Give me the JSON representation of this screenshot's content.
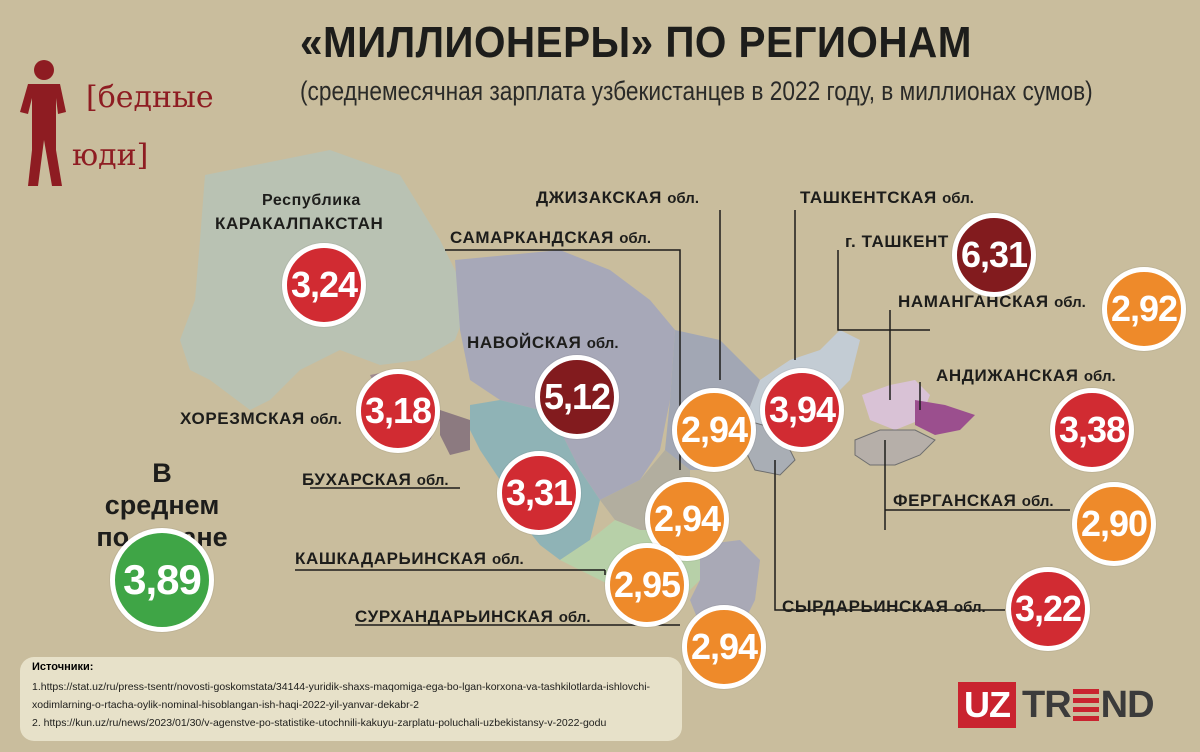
{
  "header": {
    "title": "«МИЛЛИОНЕРЫ» ПО РЕГИОНАМ",
    "subtitle": "(среднемесячная зарплата узбекистанцев в 2022 году, в миллионах сумов)"
  },
  "brand": {
    "word1": "[бедные",
    "word2": "юди]"
  },
  "regions": {
    "karakalpakstan": {
      "label1": "Республика",
      "label2": "КАРАКАЛПАКСТАН",
      "value": "3,24"
    },
    "khorezm": {
      "label": "ХОРЕЗМСКАЯ",
      "suffix": "обл.",
      "value": "3,18"
    },
    "navoi": {
      "label": "НАВОЙСКАЯ",
      "suffix": "обл.",
      "value": "5,12"
    },
    "bukhara": {
      "label": "БУХАРСКАЯ",
      "suffix": "обл.",
      "value": "3,31"
    },
    "samarkand": {
      "label": "САМАРКАНДСКАЯ",
      "suffix": "обл.",
      "value": "2,94"
    },
    "jizzakh": {
      "label": "ДЖИЗАКСКАЯ",
      "suffix": "обл.",
      "value": "2,94"
    },
    "kashkadarya": {
      "label": "КАШКАДАРЬИНСКАЯ",
      "suffix": "обл.",
      "value": "2,95"
    },
    "surkhandarya": {
      "label": "СУРХАНДАРЬИНСКАЯ",
      "suffix": "обл.",
      "value": "2,94"
    },
    "tashkent_region": {
      "label": "ТАШКЕНТСКАЯ",
      "suffix": "обл.",
      "value": "3,94"
    },
    "tashkent_city": {
      "label": "г. ТАШКЕНТ",
      "value": "6,31"
    },
    "namangan": {
      "label": "НАМАНГАНСКАЯ",
      "suffix": "обл.",
      "value": "2,92"
    },
    "andijan": {
      "label": "АНДИЖАНСКАЯ",
      "suffix": "обл.",
      "value": "3,38"
    },
    "fergana": {
      "label": "ФЕРГАНСКАЯ",
      "suffix": "обл.",
      "value": "2,90"
    },
    "syrdarya": {
      "label": "СЫРДАРЬИНСКАЯ",
      "suffix": "обл.",
      "value": "3,22"
    }
  },
  "average": {
    "label1": "В среднем",
    "label2": "по стране",
    "value": "3,89"
  },
  "sources": {
    "title": "Источники:",
    "line1": "1.https://stat.uz/ru/press-tsentr/novosti-goskomstata/34144-yuridik-shaxs-maqomiga-ega-bo-lgan-korxona-va-tashkilotlarda-ishlovchi-",
    "line2": "xodimlarning-o-rtacha-oylik-nominal-hisoblangan-ish-haqi-2022-yil-yanvar-dekabr-2",
    "line3": "2. https://kun.uz/ru/news/2023/01/30/v-agenstve-po-statistike-utochnili-kakuyu-zarplatu-poluchali-uzbekistansy-v-2022-godu"
  },
  "logo": {
    "uz": "UZ",
    "tr": "TR",
    "nd": "ND"
  },
  "colors": {
    "background": "#c9bd9d",
    "red": "#d12b32",
    "orange": "#ee8a2a",
    "dark_red": "#821b1e",
    "green": "#3fa546"
  }
}
